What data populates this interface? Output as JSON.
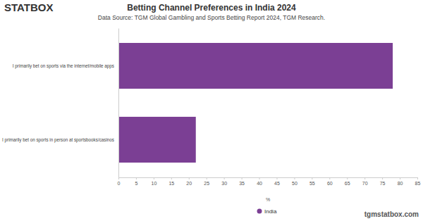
{
  "chart_data": {
    "type": "bar",
    "orientation": "horizontal",
    "title": "Betting Channel Preferences in India 2024",
    "subtitle": "Data Source: TGM Global Gambling and Sports Betting Report 2024, TGM Research.",
    "x_label": "%",
    "annotations": [
      "STATBOX",
      "tgmstatbox.com"
    ],
    "categories": [
      "I primarily bet on sports via the internet/mobile apps",
      "I primarily bet on sports in person at sportsbooks/casinos"
    ],
    "series": [
      {
        "name": "India",
        "color": "#7b3f94",
        "values": [
          78,
          22
        ]
      }
    ],
    "xlim": [
      0,
      85
    ],
    "xticks": [
      0,
      5,
      10,
      15,
      20,
      25,
      30,
      35,
      40,
      45,
      50,
      55,
      60,
      65,
      70,
      75,
      80,
      85
    ],
    "grid": false,
    "legend": "bottom"
  }
}
